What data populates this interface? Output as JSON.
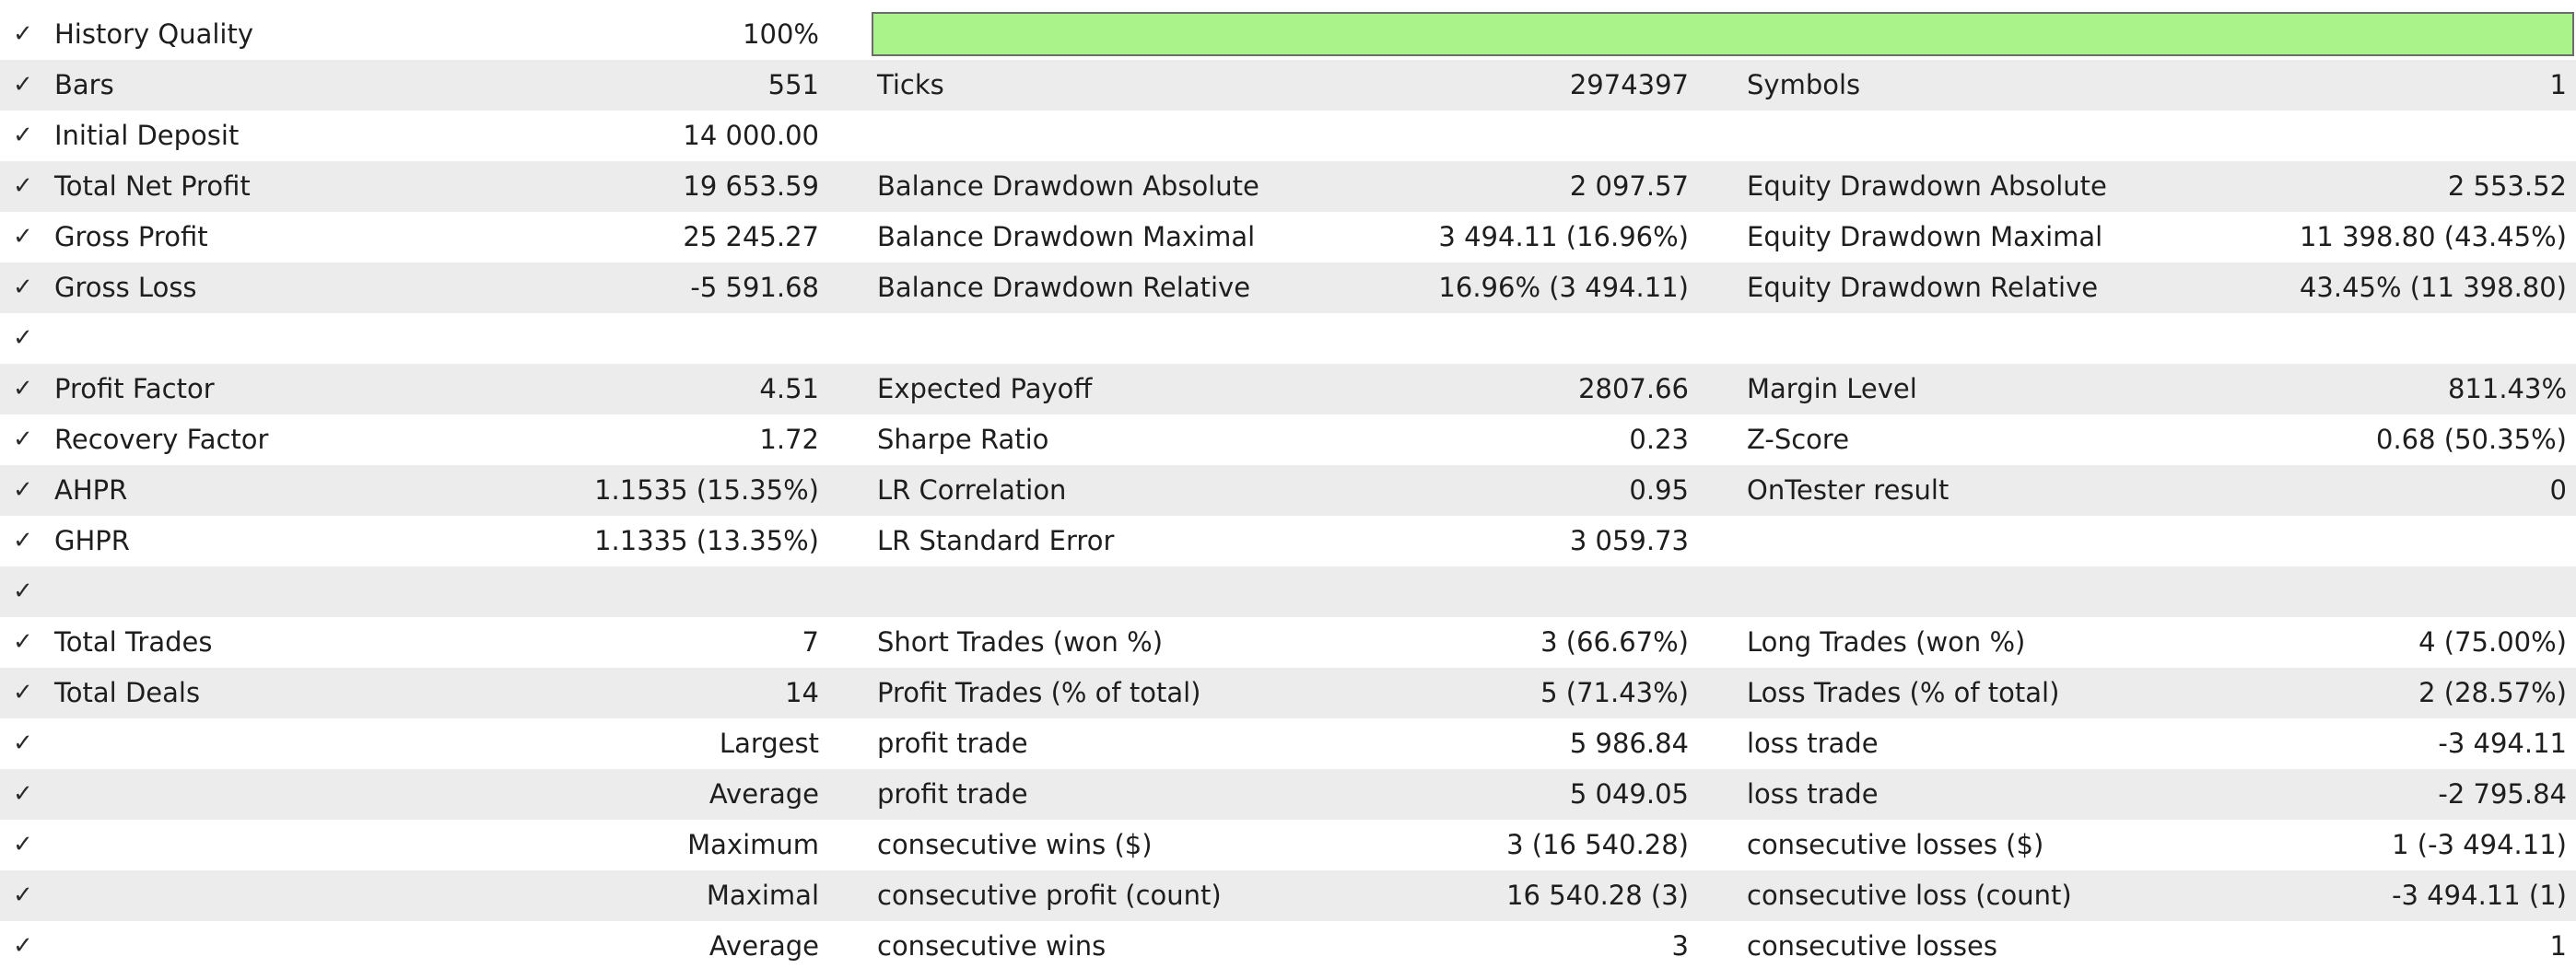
{
  "colors": {
    "quality_fill": "#aaf38a",
    "row_shade": "#ececec"
  },
  "history_quality": {
    "label": "History Quality",
    "value": "100%",
    "fill_fraction": 1.0
  },
  "rows": [
    {
      "c1": "Bars",
      "v1": "551",
      "c2": "Ticks",
      "v2": "2974397",
      "c3": "Symbols",
      "v3": "1"
    },
    {
      "c1": "Initial Deposit",
      "v1": "14 000.00",
      "c2": "",
      "v2": "",
      "c3": "",
      "v3": ""
    },
    {
      "c1": "Total Net Profit",
      "v1": "19 653.59",
      "c2": "Balance Drawdown Absolute",
      "v2": "2 097.57",
      "c3": "Equity Drawdown Absolute",
      "v3": "2 553.52"
    },
    {
      "c1": "Gross Profit",
      "v1": "25 245.27",
      "c2": "Balance Drawdown Maximal",
      "v2": "3 494.11 (16.96%)",
      "c3": "Equity Drawdown Maximal",
      "v3": "11 398.80 (43.45%)"
    },
    {
      "c1": "Gross Loss",
      "v1": "-5 591.68",
      "c2": "Balance Drawdown Relative",
      "v2": "16.96% (3 494.11)",
      "c3": "Equity Drawdown Relative",
      "v3": "43.45% (11 398.80)"
    },
    {
      "c1": "",
      "v1": "",
      "c2": "",
      "v2": "",
      "c3": "",
      "v3": ""
    },
    {
      "c1": "Profit Factor",
      "v1": "4.51",
      "c2": "Expected Payoff",
      "v2": "2807.66",
      "c3": "Margin Level",
      "v3": "811.43%"
    },
    {
      "c1": "Recovery Factor",
      "v1": "1.72",
      "c2": "Sharpe Ratio",
      "v2": "0.23",
      "c3": "Z-Score",
      "v3": "0.68 (50.35%)"
    },
    {
      "c1": "AHPR",
      "v1": "1.1535 (15.35%)",
      "c2": "LR Correlation",
      "v2": "0.95",
      "c3": "OnTester result",
      "v3": "0"
    },
    {
      "c1": "GHPR",
      "v1": "1.1335 (13.35%)",
      "c2": "LR Standard Error",
      "v2": "3 059.73",
      "c3": "",
      "v3": ""
    },
    {
      "c1": "",
      "v1": "",
      "c2": "",
      "v2": "",
      "c3": "",
      "v3": ""
    },
    {
      "c1": "Total Trades",
      "v1": "7",
      "c2": "Short Trades (won %)",
      "v2": "3 (66.67%)",
      "c3": "Long Trades (won %)",
      "v3": "4 (75.00%)"
    },
    {
      "c1": "Total Deals",
      "v1": "14",
      "c2": "Profit Trades (% of total)",
      "v2": "5 (71.43%)",
      "c3": "Loss Trades (% of total)",
      "v3": "2 (28.57%)"
    },
    {
      "c1": "",
      "v1": "Largest",
      "c2": "profit trade",
      "v2": "5 986.84",
      "c3": "loss trade",
      "v3": "-3 494.11"
    },
    {
      "c1": "",
      "v1": "Average",
      "c2": "profit trade",
      "v2": "5 049.05",
      "c3": "loss trade",
      "v3": "-2 795.84"
    },
    {
      "c1": "",
      "v1": "Maximum",
      "c2": "consecutive wins ($)",
      "v2": "3 (16 540.28)",
      "c3": "consecutive losses ($)",
      "v3": "1 (-3 494.11)"
    },
    {
      "c1": "",
      "v1": "Maximal",
      "c2": "consecutive profit (count)",
      "v2": "16 540.28 (3)",
      "c3": "consecutive loss (count)",
      "v3": "-3 494.11 (1)"
    },
    {
      "c1": "",
      "v1": "Average",
      "c2": "consecutive wins",
      "v2": "3",
      "c3": "consecutive losses",
      "v3": "1"
    }
  ],
  "check_glyph": "✓"
}
